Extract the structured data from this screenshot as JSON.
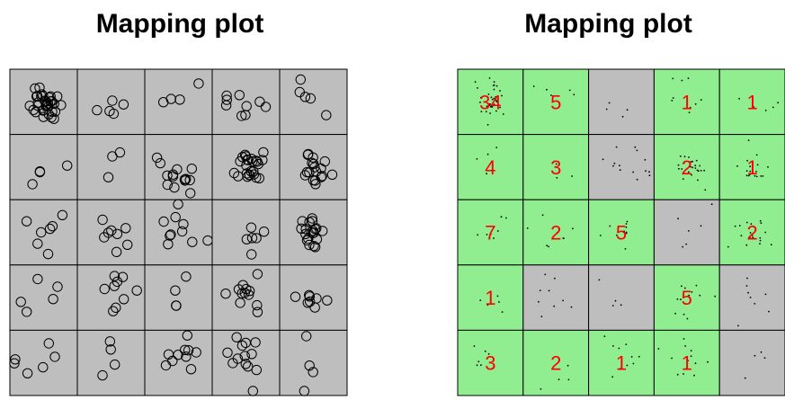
{
  "chart_data": [
    {
      "type": "scatter",
      "title": "Mapping plot",
      "grid_rows": 5,
      "grid_cols": 5,
      "cell_color": "#bebebe",
      "point_style": "open-circle",
      "cell_point_counts": [
        [
          34,
          5,
          4,
          9,
          5
        ],
        [
          4,
          3,
          14,
          25,
          18
        ],
        [
          7,
          8,
          10,
          6,
          20
        ],
        [
          5,
          9,
          4,
          12,
          8
        ],
        [
          6,
          4,
          10,
          13,
          4
        ]
      ]
    },
    {
      "type": "scatter",
      "title": "Mapping plot",
      "grid_rows": 5,
      "grid_cols": 5,
      "point_style": "dot",
      "label_color": "#ff0000",
      "highlight_color": "#90ee90",
      "neutral_color": "#bebebe",
      "cells": [
        [
          {
            "label": "34",
            "highlight": true
          },
          {
            "label": "5",
            "highlight": true
          },
          {
            "label": "",
            "highlight": false
          },
          {
            "label": "1",
            "highlight": true
          },
          {
            "label": "1",
            "highlight": true
          }
        ],
        [
          {
            "label": "4",
            "highlight": true
          },
          {
            "label": "3",
            "highlight": true
          },
          {
            "label": "",
            "highlight": false
          },
          {
            "label": "2",
            "highlight": true
          },
          {
            "label": "1",
            "highlight": true
          }
        ],
        [
          {
            "label": "7",
            "highlight": true
          },
          {
            "label": "2",
            "highlight": true
          },
          {
            "label": "5",
            "highlight": true
          },
          {
            "label": "",
            "highlight": false
          },
          {
            "label": "2",
            "highlight": true
          }
        ],
        [
          {
            "label": "1",
            "highlight": true
          },
          {
            "label": "",
            "highlight": false
          },
          {
            "label": "",
            "highlight": false
          },
          {
            "label": "5",
            "highlight": true
          },
          {
            "label": "",
            "highlight": false
          }
        ],
        [
          {
            "label": "3",
            "highlight": true
          },
          {
            "label": "2",
            "highlight": true
          },
          {
            "label": "1",
            "highlight": true
          },
          {
            "label": "1",
            "highlight": true
          },
          {
            "label": "",
            "highlight": false
          }
        ]
      ],
      "cell_point_counts": [
        [
          34,
          5,
          4,
          9,
          5
        ],
        [
          4,
          3,
          14,
          25,
          18
        ],
        [
          7,
          8,
          10,
          6,
          20
        ],
        [
          5,
          9,
          4,
          12,
          8
        ],
        [
          6,
          4,
          10,
          13,
          4
        ]
      ]
    }
  ]
}
